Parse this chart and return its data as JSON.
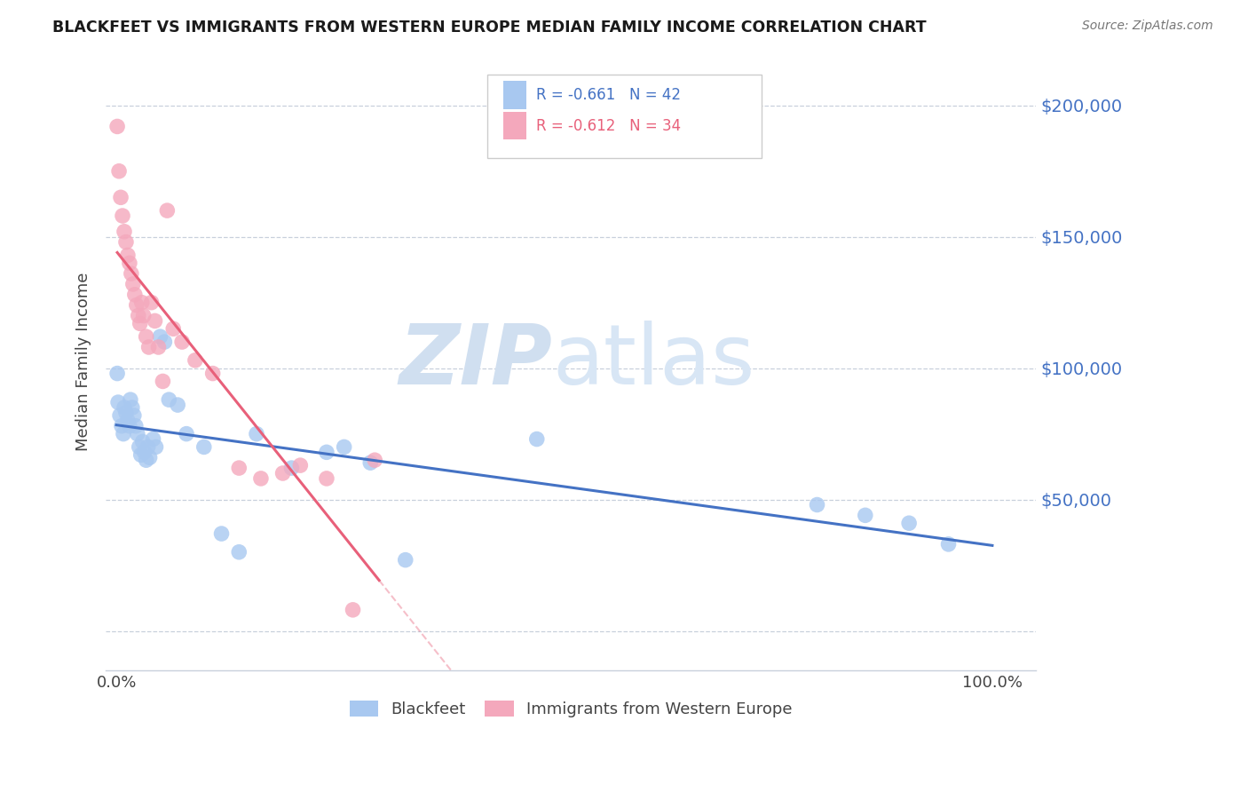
{
  "title": "BLACKFEET VS IMMIGRANTS FROM WESTERN EUROPE MEDIAN FAMILY INCOME CORRELATION CHART",
  "source": "Source: ZipAtlas.com",
  "ylabel": "Median Family Income",
  "yticks": [
    0,
    50000,
    100000,
    150000,
    200000
  ],
  "ytick_labels": [
    "",
    "$50,000",
    "$100,000",
    "$150,000",
    "$200,000"
  ],
  "ymax": 220000,
  "ymin": -15000,
  "xmin": -0.012,
  "xmax": 1.05,
  "blue_R": -0.661,
  "blue_N": 42,
  "pink_R": -0.612,
  "pink_N": 34,
  "legend_label1": "Blackfeet",
  "legend_label2": "Immigrants from Western Europe",
  "blue_color": "#A8C8F0",
  "pink_color": "#F4A8BC",
  "blue_line_color": "#4472C4",
  "pink_line_color": "#E8607A",
  "blue_scatter_x": [
    0.001,
    0.002,
    0.004,
    0.006,
    0.008,
    0.009,
    0.011,
    0.013,
    0.015,
    0.016,
    0.018,
    0.02,
    0.022,
    0.024,
    0.026,
    0.028,
    0.03,
    0.032,
    0.034,
    0.036,
    0.038,
    0.042,
    0.045,
    0.05,
    0.055,
    0.06,
    0.07,
    0.08,
    0.1,
    0.12,
    0.14,
    0.16,
    0.2,
    0.24,
    0.26,
    0.29,
    0.33,
    0.48,
    0.8,
    0.855,
    0.905,
    0.95
  ],
  "blue_scatter_y": [
    98000,
    87000,
    82000,
    78000,
    75000,
    85000,
    83000,
    80000,
    78000,
    88000,
    85000,
    82000,
    78000,
    75000,
    70000,
    67000,
    72000,
    68000,
    65000,
    70000,
    66000,
    73000,
    70000,
    112000,
    110000,
    88000,
    86000,
    75000,
    70000,
    37000,
    30000,
    75000,
    62000,
    68000,
    70000,
    64000,
    27000,
    73000,
    48000,
    44000,
    41000,
    33000
  ],
  "pink_scatter_x": [
    0.001,
    0.003,
    0.005,
    0.007,
    0.009,
    0.011,
    0.013,
    0.015,
    0.017,
    0.019,
    0.021,
    0.023,
    0.025,
    0.027,
    0.029,
    0.031,
    0.034,
    0.037,
    0.04,
    0.044,
    0.048,
    0.053,
    0.058,
    0.065,
    0.075,
    0.09,
    0.11,
    0.14,
    0.165,
    0.19,
    0.21,
    0.24,
    0.27,
    0.295
  ],
  "pink_scatter_y": [
    192000,
    175000,
    165000,
    158000,
    152000,
    148000,
    143000,
    140000,
    136000,
    132000,
    128000,
    124000,
    120000,
    117000,
    125000,
    120000,
    112000,
    108000,
    125000,
    118000,
    108000,
    95000,
    160000,
    115000,
    110000,
    103000,
    98000,
    62000,
    58000,
    60000,
    63000,
    58000,
    8000,
    65000
  ],
  "pink_line_x_end": 0.3,
  "blue_line_x_start": 0.0,
  "blue_line_x_end": 1.0
}
